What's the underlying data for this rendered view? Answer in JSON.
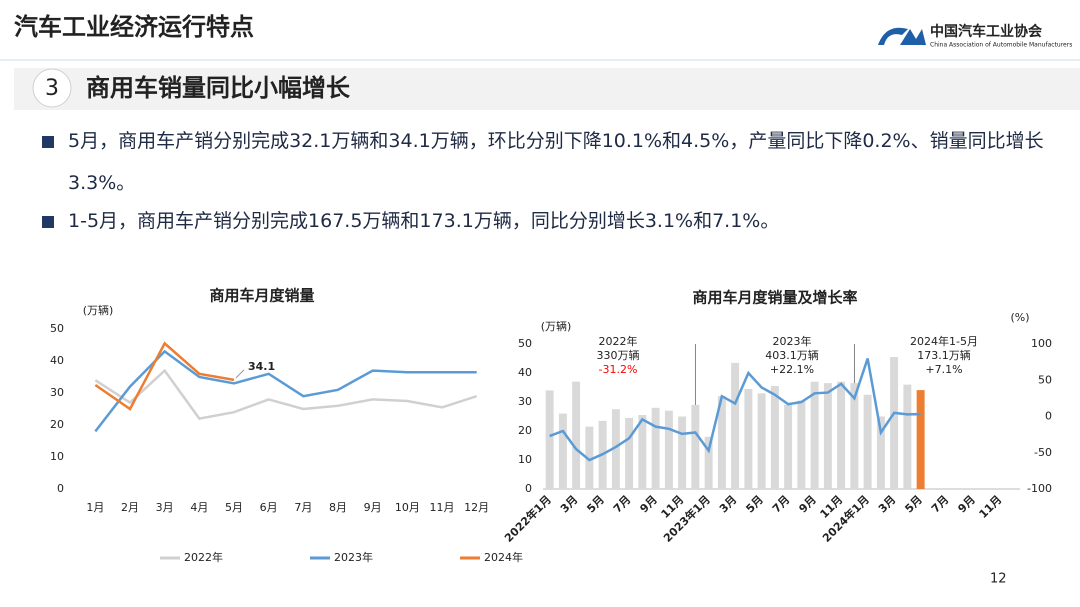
{
  "header": {
    "title": "汽车工业经济运行特点",
    "logo_cn": "中国汽车工业协会",
    "logo_en": "China Association of Automobile Manufacturers"
  },
  "section": {
    "number": "3",
    "title": "商用车销量同比小幅增长"
  },
  "bullets": [
    "5月，商用车产销分别完成32.1万辆和34.1万辆，环比分别下降10.1%和4.5%，产量同比下降0.2%、销量同比增长3.3%。",
    "1-5月，商用车产销分别完成167.5万辆和173.1万辆，同比分别增长3.1%和7.1%。"
  ],
  "page_number": "12",
  "chart_data": [
    {
      "type": "line",
      "title": "商用车月度销量",
      "y_label": "(万辆)",
      "categories": [
        "1月",
        "2月",
        "3月",
        "4月",
        "5月",
        "6月",
        "7月",
        "8月",
        "9月",
        "10月",
        "11月",
        "12月"
      ],
      "ylim": [
        0,
        50
      ],
      "yticks": [
        0,
        10,
        20,
        30,
        40,
        50
      ],
      "grid": false,
      "legend": "bottom",
      "series": [
        {
          "name": "2022年",
          "color": "#d0d0d0",
          "values": [
            34,
            27,
            37,
            22,
            24,
            28,
            25,
            26,
            28,
            27.5,
            25.5,
            29
          ]
        },
        {
          "name": "2023年",
          "color": "#5b9bd5",
          "values": [
            18,
            32,
            43,
            35,
            33,
            36,
            29,
            31,
            37,
            36.5,
            36.5,
            36.5
          ]
        },
        {
          "name": "2024年",
          "color": "#ed7d31",
          "values": [
            32.5,
            25,
            45.5,
            36,
            34.1,
            null,
            null,
            null,
            null,
            null,
            null,
            null
          ],
          "value_labels": [
            null,
            null,
            null,
            null,
            "34.1",
            null,
            null,
            null,
            null,
            null,
            null,
            null
          ]
        }
      ]
    },
    {
      "type": "bar_line",
      "title": "商用车月度销量及增长率",
      "y_label": "(万辆)",
      "y2_label": "(%)",
      "categories": [
        "2022年1月",
        null,
        "3月",
        null,
        "5月",
        null,
        "7月",
        null,
        "9月",
        null,
        "11月",
        null,
        "2023年1月",
        null,
        "3月",
        null,
        "5月",
        null,
        "7月",
        null,
        "9月",
        null,
        "11月",
        null,
        "2024年1月",
        null,
        "3月",
        null,
        "5月",
        null,
        "7月",
        null,
        "9月",
        null,
        "11月",
        null
      ],
      "ylim": [
        0,
        50
      ],
      "yticks": [
        0,
        10,
        20,
        30,
        40,
        50
      ],
      "y2lim": [
        -100,
        100
      ],
      "y2ticks": [
        -100,
        -50,
        0,
        50,
        100
      ],
      "series": [
        {
          "type": "bar",
          "colors": [
            "#d9d9d9",
            "#d9d9d9",
            "#d9d9d9",
            "#d9d9d9",
            "#d9d9d9",
            "#d9d9d9",
            "#d9d9d9",
            "#d9d9d9",
            "#d9d9d9",
            "#d9d9d9",
            "#d9d9d9",
            "#d9d9d9",
            "#d9d9d9",
            "#d9d9d9",
            "#d9d9d9",
            "#d9d9d9",
            "#d9d9d9",
            "#d9d9d9",
            "#d9d9d9",
            "#d9d9d9",
            "#d9d9d9",
            "#d9d9d9",
            "#d9d9d9",
            "#d9d9d9",
            "#d9d9d9",
            "#d9d9d9",
            "#d9d9d9",
            "#d9d9d9",
            "#ed7d31",
            null,
            null,
            null,
            null,
            null,
            null,
            null
          ],
          "values": [
            34,
            26,
            37,
            21.5,
            23.5,
            27.5,
            24.5,
            25.5,
            28,
            27,
            25,
            29,
            18,
            32,
            43.5,
            34.5,
            33,
            35.5,
            29,
            30.5,
            37,
            36.5,
            37,
            36.5,
            32.5,
            25,
            45.5,
            36,
            34.1,
            null,
            null,
            null,
            null,
            null,
            null,
            null
          ]
        },
        {
          "type": "line",
          "axis": "y2",
          "color": "#5b9bd5",
          "values": [
            -27,
            -20,
            -45,
            -60,
            -52,
            -42,
            -30,
            -4,
            -14,
            -17,
            -24,
            -22,
            -47,
            28,
            18,
            60,
            40,
            30,
            17,
            20,
            32,
            33,
            45,
            25,
            80,
            -22,
            5,
            3,
            3.3,
            null,
            null,
            null,
            null,
            null,
            null,
            null
          ]
        }
      ],
      "annotations": [
        {
          "year": "2022年",
          "total": "330万辆",
          "growth": "-31.2%",
          "growth_color": "#ff0000"
        },
        {
          "year": "2023年",
          "total": "403.1万辆",
          "growth": "+22.1%",
          "growth_color": "#222222"
        },
        {
          "year": "2024年1-5月",
          "total": "173.1万辆",
          "growth": "+7.1%",
          "growth_color": "#222222"
        }
      ]
    }
  ]
}
